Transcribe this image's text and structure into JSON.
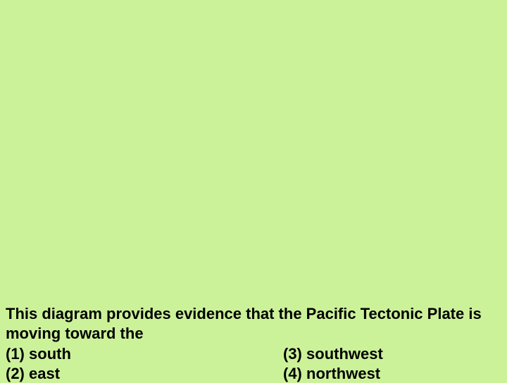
{
  "background_color": "#ccf299",
  "text_color": "#000000",
  "font_family": "Verdana, Geneva, sans-serif",
  "font_size": 22,
  "font_weight": "bold",
  "question": {
    "stem": "This diagram provides evidence that the Pacific Tectonic Plate is moving toward the",
    "options": {
      "left": [
        {
          "number": "(1)",
          "text": "south"
        },
        {
          "number": "(2)",
          "text": "east"
        }
      ],
      "right": [
        {
          "number": "(3)",
          "text": "southwest"
        },
        {
          "number": "(4)",
          "text": "northwest"
        }
      ]
    }
  }
}
